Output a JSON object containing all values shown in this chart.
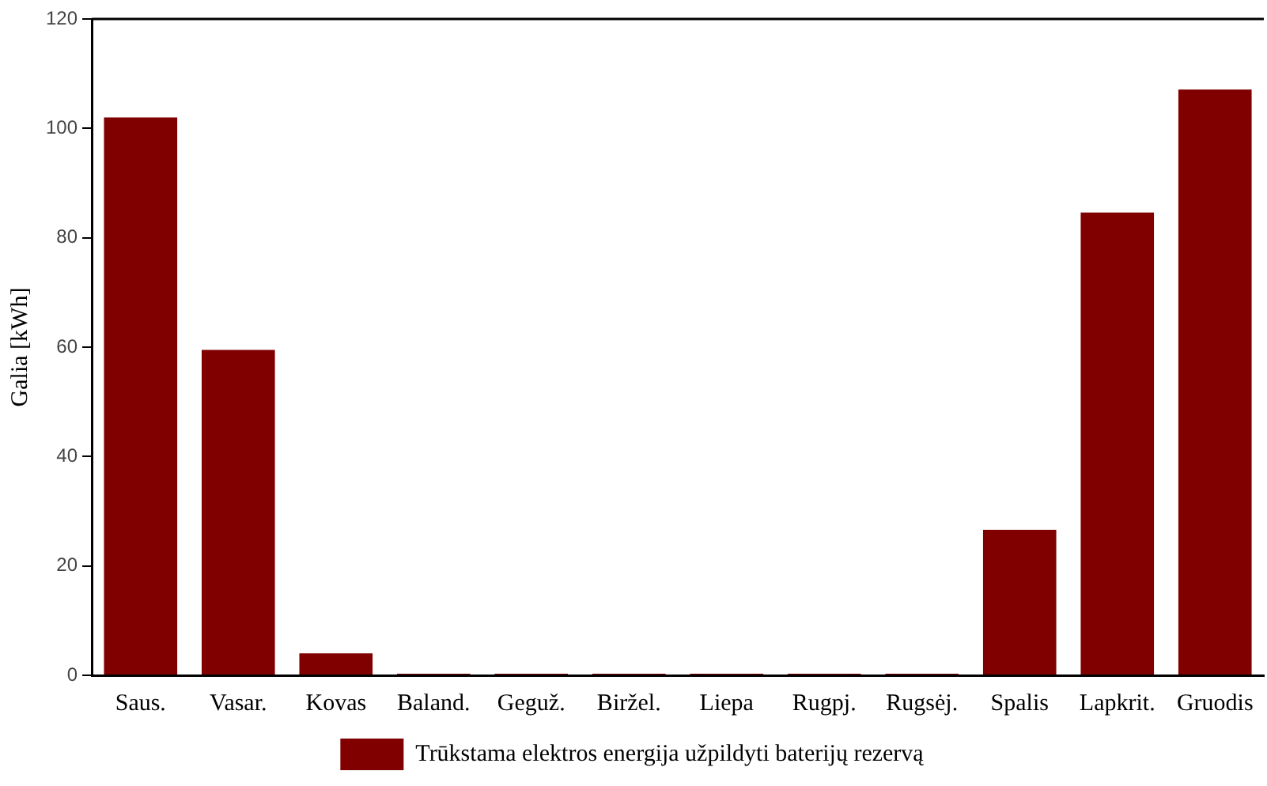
{
  "chart_data": {
    "type": "bar",
    "ylabel": "Galia [kWh]",
    "categories": [
      "Saus.",
      "Vasar.",
      "Kovas",
      "Baland.",
      "Geguž.",
      "Biržel.",
      "Liepa",
      "Rugpj.",
      "Rugsėj.",
      "Spalis",
      "Lapkrit.",
      "Gruodis"
    ],
    "series": [
      {
        "name": "Trūkstama elektros energija užpildyti baterijų rezervą",
        "color": "#800000",
        "values": [
          102,
          59.5,
          4,
          0.3,
          0.3,
          0.3,
          0.3,
          0.3,
          0.3,
          26.6,
          84.6,
          107.1
        ]
      }
    ],
    "ylim": [
      0,
      120
    ],
    "yticks": [
      0,
      20,
      40,
      60,
      80,
      100,
      120
    ],
    "grid": false,
    "legend": "bottom"
  }
}
